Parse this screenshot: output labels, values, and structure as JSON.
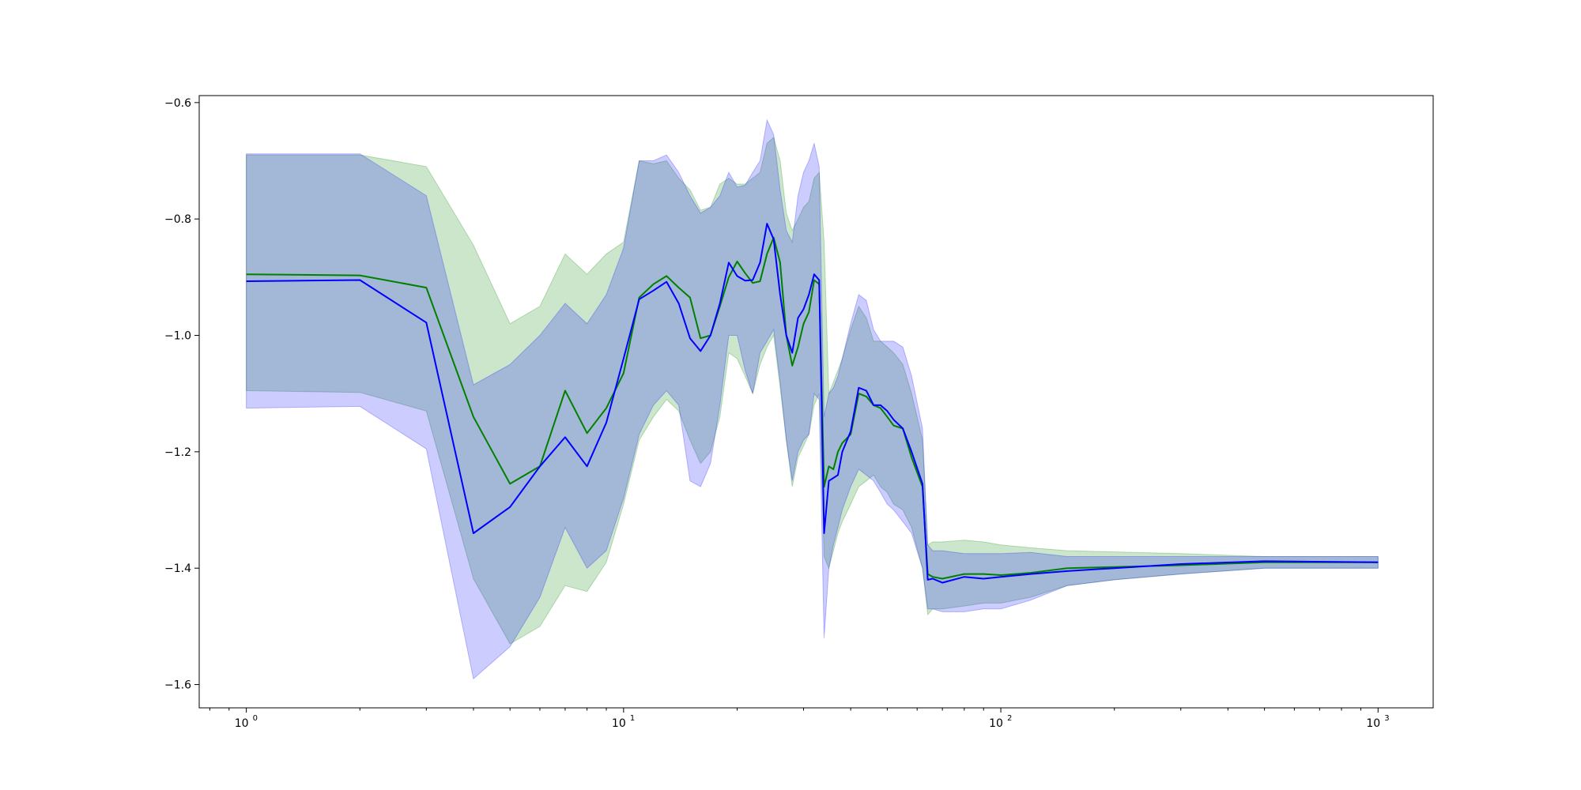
{
  "chart_data": {
    "type": "line",
    "title": "",
    "xlabel": "",
    "ylabel": "",
    "xscale": "log",
    "xlim": [
      0.75,
      1400
    ],
    "ylim": [
      -1.64,
      -0.588
    ],
    "grid": false,
    "legend": "none",
    "x_ticks": [
      {
        "base": "10",
        "exp": "0",
        "value": 1
      },
      {
        "base": "10",
        "exp": "1",
        "value": 10
      },
      {
        "base": "10",
        "exp": "2",
        "value": 100
      },
      {
        "base": "10",
        "exp": "3",
        "value": 1000
      }
    ],
    "y_ticks": [
      {
        "label": "−0.6",
        "value": -0.6
      },
      {
        "label": "−0.8",
        "value": -0.8
      },
      {
        "label": "−1.0",
        "value": -1.0
      },
      {
        "label": "−1.2",
        "value": -1.2
      },
      {
        "label": "−1.4",
        "value": -1.4
      },
      {
        "label": "−1.6",
        "value": -1.6
      }
    ],
    "series": [
      {
        "color": "#008000",
        "band_color": "#008000",
        "x": [
          1,
          2,
          3,
          4,
          5,
          6,
          7,
          8,
          9,
          10,
          11,
          12,
          13,
          14,
          15,
          16,
          17,
          18,
          19,
          20,
          21,
          22,
          23,
          24,
          25,
          26,
          27,
          28,
          29,
          30,
          31,
          32,
          33,
          34,
          35,
          36,
          37,
          38,
          40,
          42,
          44,
          46,
          48,
          50,
          52,
          55,
          58,
          62,
          64,
          66,
          70,
          80,
          90,
          100,
          120,
          150,
          200,
          300,
          500,
          1000
        ],
        "y": [
          -0.895,
          -0.897,
          -0.918,
          -1.14,
          -1.255,
          -1.225,
          -1.095,
          -1.168,
          -1.125,
          -1.065,
          -0.935,
          -0.912,
          -0.898,
          -0.918,
          -0.935,
          -1.005,
          -1.0,
          -0.95,
          -0.9,
          -0.873,
          -0.893,
          -0.91,
          -0.907,
          -0.86,
          -0.832,
          -0.875,
          -1.0,
          -1.052,
          -1.02,
          -0.98,
          -0.96,
          -0.905,
          -0.912,
          -1.26,
          -1.225,
          -1.23,
          -1.2,
          -1.185,
          -1.17,
          -1.1,
          -1.105,
          -1.12,
          -1.125,
          -1.14,
          -1.155,
          -1.16,
          -1.21,
          -1.26,
          -1.41,
          -1.415,
          -1.418,
          -1.41,
          -1.41,
          -1.412,
          -1.408,
          -1.4,
          -1.398,
          -1.395,
          -1.39,
          -1.39
        ],
        "lower": [
          -1.095,
          -1.098,
          -1.13,
          -1.418,
          -1.53,
          -1.5,
          -1.43,
          -1.44,
          -1.39,
          -1.29,
          -1.18,
          -1.14,
          -1.11,
          -1.13,
          -1.18,
          -1.22,
          -1.2,
          -1.14,
          -1.03,
          -1.04,
          -1.07,
          -1.1,
          -1.05,
          -1.02,
          -1.0,
          -1.09,
          -1.18,
          -1.26,
          -1.21,
          -1.19,
          -1.17,
          -1.12,
          -1.1,
          -1.38,
          -1.4,
          -1.37,
          -1.34,
          -1.32,
          -1.29,
          -1.26,
          -1.25,
          -1.24,
          -1.26,
          -1.27,
          -1.29,
          -1.3,
          -1.33,
          -1.4,
          -1.48,
          -1.47,
          -1.47,
          -1.465,
          -1.46,
          -1.46,
          -1.45,
          -1.43,
          -1.42,
          -1.41,
          -1.4,
          -1.4
        ],
        "upper": [
          -0.69,
          -0.69,
          -0.71,
          -0.845,
          -0.98,
          -0.95,
          -0.86,
          -0.895,
          -0.86,
          -0.84,
          -0.7,
          -0.705,
          -0.7,
          -0.73,
          -0.75,
          -0.785,
          -0.78,
          -0.74,
          -0.73,
          -0.74,
          -0.74,
          -0.73,
          -0.72,
          -0.67,
          -0.66,
          -0.7,
          -0.79,
          -0.82,
          -0.8,
          -0.78,
          -0.77,
          -0.73,
          -0.72,
          -0.84,
          -1.1,
          -1.08,
          -1.06,
          -1.04,
          -0.99,
          -0.95,
          -0.97,
          -1.01,
          -1.01,
          -1.02,
          -1.03,
          -1.05,
          -1.1,
          -1.18,
          -1.36,
          -1.355,
          -1.355,
          -1.352,
          -1.355,
          -1.36,
          -1.365,
          -1.37,
          -1.372,
          -1.375,
          -1.38,
          -1.38
        ]
      },
      {
        "color": "#0000ff",
        "band_color": "#0000ff",
        "x": [
          1,
          2,
          3,
          4,
          5,
          6,
          7,
          8,
          9,
          10,
          11,
          12,
          13,
          14,
          15,
          16,
          17,
          18,
          19,
          20,
          21,
          22,
          23,
          24,
          25,
          26,
          27,
          28,
          29,
          30,
          31,
          32,
          33,
          34,
          35,
          36,
          37,
          38,
          40,
          42,
          44,
          46,
          48,
          50,
          52,
          55,
          58,
          62,
          64,
          66,
          70,
          80,
          90,
          100,
          120,
          150,
          200,
          300,
          500,
          1000
        ],
        "y": [
          -0.907,
          -0.905,
          -0.978,
          -1.34,
          -1.295,
          -1.225,
          -1.175,
          -1.225,
          -1.15,
          -1.04,
          -0.938,
          -0.923,
          -0.908,
          -0.945,
          -1.005,
          -1.027,
          -1.0,
          -0.945,
          -0.875,
          -0.898,
          -0.906,
          -0.905,
          -0.875,
          -0.808,
          -0.835,
          -0.93,
          -1.0,
          -1.03,
          -0.97,
          -0.955,
          -0.93,
          -0.895,
          -0.905,
          -1.34,
          -1.25,
          -1.245,
          -1.24,
          -1.2,
          -1.165,
          -1.09,
          -1.095,
          -1.12,
          -1.12,
          -1.13,
          -1.145,
          -1.16,
          -1.2,
          -1.255,
          -1.42,
          -1.418,
          -1.425,
          -1.415,
          -1.418,
          -1.415,
          -1.41,
          -1.405,
          -1.4,
          -1.393,
          -1.388,
          -1.39
        ],
        "lower": [
          -1.125,
          -1.122,
          -1.195,
          -1.59,
          -1.535,
          -1.45,
          -1.33,
          -1.4,
          -1.37,
          -1.28,
          -1.17,
          -1.12,
          -1.095,
          -1.12,
          -1.25,
          -1.26,
          -1.22,
          -1.12,
          -1.0,
          -1.0,
          -1.06,
          -1.1,
          -1.03,
          -1.01,
          -0.99,
          -1.08,
          -1.18,
          -1.25,
          -1.2,
          -1.18,
          -1.17,
          -1.1,
          -1.11,
          -1.52,
          -1.4,
          -1.36,
          -1.33,
          -1.3,
          -1.26,
          -1.23,
          -1.24,
          -1.25,
          -1.27,
          -1.29,
          -1.3,
          -1.32,
          -1.34,
          -1.4,
          -1.47,
          -1.47,
          -1.475,
          -1.475,
          -1.47,
          -1.47,
          -1.455,
          -1.43,
          -1.42,
          -1.41,
          -1.4,
          -1.4
        ],
        "upper": [
          -0.688,
          -0.688,
          -0.76,
          -1.085,
          -1.05,
          -1.0,
          -0.945,
          -0.98,
          -0.93,
          -0.85,
          -0.7,
          -0.7,
          -0.69,
          -0.72,
          -0.76,
          -0.79,
          -0.78,
          -0.76,
          -0.72,
          -0.745,
          -0.742,
          -0.72,
          -0.7,
          -0.63,
          -0.655,
          -0.75,
          -0.82,
          -0.84,
          -0.76,
          -0.72,
          -0.7,
          -0.67,
          -0.71,
          -1.14,
          -1.1,
          -1.09,
          -1.07,
          -1.04,
          -0.98,
          -0.93,
          -0.94,
          -0.99,
          -1.01,
          -1.01,
          -1.01,
          -1.02,
          -1.07,
          -1.16,
          -1.36,
          -1.37,
          -1.37,
          -1.375,
          -1.375,
          -1.375,
          -1.373,
          -1.38,
          -1.38,
          -1.38,
          -1.38,
          -1.38
        ]
      }
    ]
  }
}
